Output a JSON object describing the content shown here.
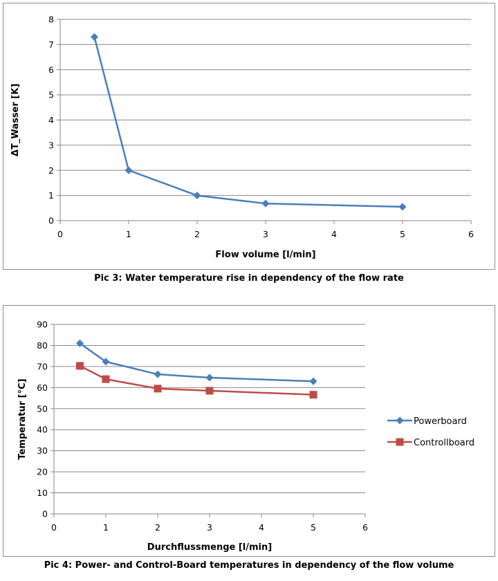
{
  "chart_data": [
    {
      "type": "line",
      "title": "",
      "xlabel": "Flow volume [l/min]",
      "ylabel": "ΔT_Wasser [K]",
      "xlim": [
        0,
        6
      ],
      "ylim": [
        0,
        8
      ],
      "xticks": [
        "0",
        "1",
        "2",
        "3",
        "4",
        "5",
        "6"
      ],
      "yticks": [
        "0",
        "1",
        "2",
        "3",
        "4",
        "5",
        "6",
        "7",
        "8"
      ],
      "grid": true,
      "legend": "none",
      "series": [
        {
          "x": [
            0.5,
            1,
            2,
            3,
            5
          ],
          "values": [
            7.3,
            2.0,
            1.0,
            0.68,
            0.55
          ],
          "color": "#4a7ebb",
          "marker": "diamond"
        }
      ],
      "caption": "Pic 3: Water temperature rise in dependency of the flow rate"
    },
    {
      "type": "line",
      "title": "",
      "xlabel": "Durchflussmenge [l/min]",
      "ylabel": "Temperatur [°C]",
      "xlim": [
        0,
        6
      ],
      "ylim": [
        0,
        90
      ],
      "xticks": [
        "0",
        "1",
        "2",
        "3",
        "4",
        "5",
        "6"
      ],
      "yticks": [
        "0",
        "10",
        "20",
        "30",
        "40",
        "50",
        "60",
        "70",
        "80",
        "90"
      ],
      "grid": true,
      "legend": "right",
      "series": [
        {
          "name": "Powerboard",
          "x": [
            0.5,
            1,
            2,
            3,
            5
          ],
          "values": [
            81,
            72.3,
            66.3,
            64.7,
            63
          ],
          "color": "#4a7ebb",
          "marker": "diamond"
        },
        {
          "name": "Controllboard",
          "x": [
            0.5,
            1,
            2,
            3,
            5
          ],
          "values": [
            70.3,
            64,
            59.5,
            58.5,
            56.6
          ],
          "color": "#be4b48",
          "marker": "square"
        }
      ],
      "caption": "Pic 4: Power- and Control-Board temperatures in dependency of the flow volume"
    }
  ]
}
